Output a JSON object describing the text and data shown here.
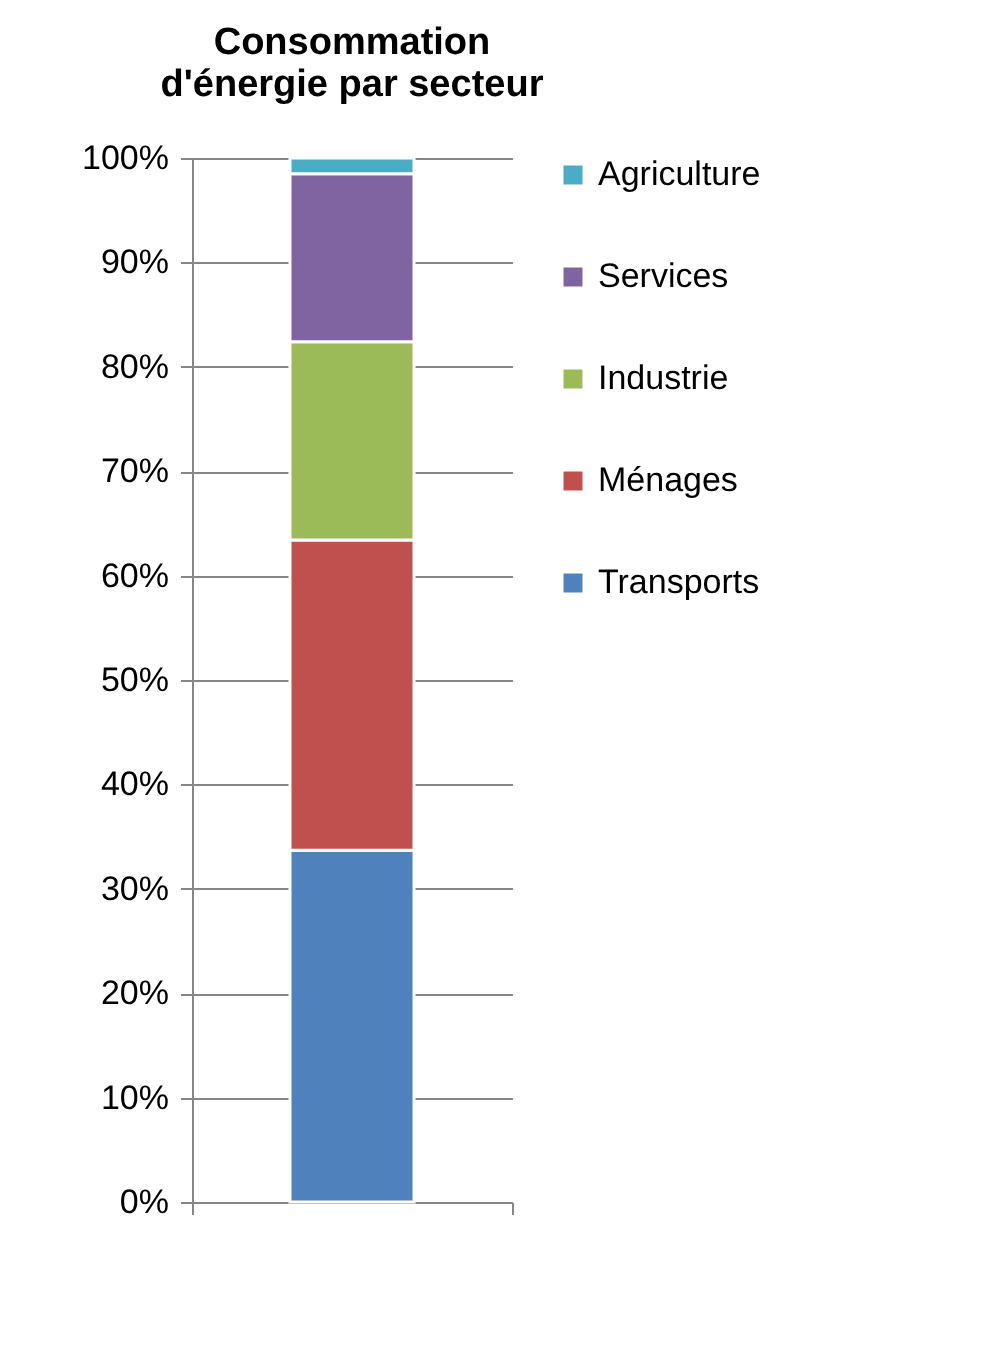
{
  "chart_data": {
    "type": "bar",
    "title": "Consommation d'énergie par secteur",
    "categories": [
      null
    ],
    "stacked": true,
    "series": [
      {
        "name": "Transports",
        "color": "#4f81bd",
        "values": [
          33.7
        ]
      },
      {
        "name": "Ménages",
        "color": "#c0504d",
        "values": [
          29.7
        ]
      },
      {
        "name": "Industrie",
        "color": "#9bbb59",
        "values": [
          19.0
        ]
      },
      {
        "name": "Services",
        "color": "#8064a2",
        "values": [
          16.1
        ]
      },
      {
        "name": "Agriculture",
        "color": "#4bacc6",
        "values": [
          1.5
        ]
      }
    ],
    "ylim": [
      0,
      100
    ],
    "yticks": [
      {
        "value": 0,
        "label": "0%"
      },
      {
        "value": 10,
        "label": "10%"
      },
      {
        "value": 20,
        "label": "20%"
      },
      {
        "value": 30,
        "label": "30%"
      },
      {
        "value": 40,
        "label": "40%"
      },
      {
        "value": 50,
        "label": "50%"
      },
      {
        "value": 60,
        "label": "60%"
      },
      {
        "value": 70,
        "label": "70%"
      },
      {
        "value": 80,
        "label": "80%"
      },
      {
        "value": 90,
        "label": "90%"
      },
      {
        "value": 100,
        "label": "100%"
      }
    ],
    "grid": "y",
    "legend": "right",
    "tick_labels": "y"
  }
}
